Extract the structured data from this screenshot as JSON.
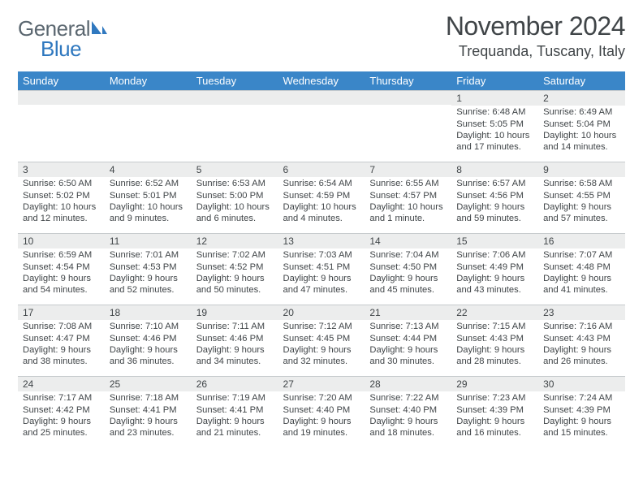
{
  "logo": {
    "general": "General",
    "blue": "Blue"
  },
  "title": "November 2024",
  "location": "Trequanda, Tuscany, Italy",
  "colors": {
    "header_bg": "#3a86c8",
    "header_fg": "#ffffff",
    "daynum_bg": "#eceded",
    "text": "#404548",
    "logo_gray": "#5b6770",
    "logo_blue": "#2f78bf"
  },
  "weekdays": [
    "Sunday",
    "Monday",
    "Tuesday",
    "Wednesday",
    "Thursday",
    "Friday",
    "Saturday"
  ],
  "weeks": [
    [
      null,
      null,
      null,
      null,
      null,
      {
        "n": "1",
        "sr": "Sunrise: 6:48 AM",
        "ss": "Sunset: 5:05 PM",
        "dl": "Daylight: 10 hours and 17 minutes."
      },
      {
        "n": "2",
        "sr": "Sunrise: 6:49 AM",
        "ss": "Sunset: 5:04 PM",
        "dl": "Daylight: 10 hours and 14 minutes."
      }
    ],
    [
      {
        "n": "3",
        "sr": "Sunrise: 6:50 AM",
        "ss": "Sunset: 5:02 PM",
        "dl": "Daylight: 10 hours and 12 minutes."
      },
      {
        "n": "4",
        "sr": "Sunrise: 6:52 AM",
        "ss": "Sunset: 5:01 PM",
        "dl": "Daylight: 10 hours and 9 minutes."
      },
      {
        "n": "5",
        "sr": "Sunrise: 6:53 AM",
        "ss": "Sunset: 5:00 PM",
        "dl": "Daylight: 10 hours and 6 minutes."
      },
      {
        "n": "6",
        "sr": "Sunrise: 6:54 AM",
        "ss": "Sunset: 4:59 PM",
        "dl": "Daylight: 10 hours and 4 minutes."
      },
      {
        "n": "7",
        "sr": "Sunrise: 6:55 AM",
        "ss": "Sunset: 4:57 PM",
        "dl": "Daylight: 10 hours and 1 minute."
      },
      {
        "n": "8",
        "sr": "Sunrise: 6:57 AM",
        "ss": "Sunset: 4:56 PM",
        "dl": "Daylight: 9 hours and 59 minutes."
      },
      {
        "n": "9",
        "sr": "Sunrise: 6:58 AM",
        "ss": "Sunset: 4:55 PM",
        "dl": "Daylight: 9 hours and 57 minutes."
      }
    ],
    [
      {
        "n": "10",
        "sr": "Sunrise: 6:59 AM",
        "ss": "Sunset: 4:54 PM",
        "dl": "Daylight: 9 hours and 54 minutes."
      },
      {
        "n": "11",
        "sr": "Sunrise: 7:01 AM",
        "ss": "Sunset: 4:53 PM",
        "dl": "Daylight: 9 hours and 52 minutes."
      },
      {
        "n": "12",
        "sr": "Sunrise: 7:02 AM",
        "ss": "Sunset: 4:52 PM",
        "dl": "Daylight: 9 hours and 50 minutes."
      },
      {
        "n": "13",
        "sr": "Sunrise: 7:03 AM",
        "ss": "Sunset: 4:51 PM",
        "dl": "Daylight: 9 hours and 47 minutes."
      },
      {
        "n": "14",
        "sr": "Sunrise: 7:04 AM",
        "ss": "Sunset: 4:50 PM",
        "dl": "Daylight: 9 hours and 45 minutes."
      },
      {
        "n": "15",
        "sr": "Sunrise: 7:06 AM",
        "ss": "Sunset: 4:49 PM",
        "dl": "Daylight: 9 hours and 43 minutes."
      },
      {
        "n": "16",
        "sr": "Sunrise: 7:07 AM",
        "ss": "Sunset: 4:48 PM",
        "dl": "Daylight: 9 hours and 41 minutes."
      }
    ],
    [
      {
        "n": "17",
        "sr": "Sunrise: 7:08 AM",
        "ss": "Sunset: 4:47 PM",
        "dl": "Daylight: 9 hours and 38 minutes."
      },
      {
        "n": "18",
        "sr": "Sunrise: 7:10 AM",
        "ss": "Sunset: 4:46 PM",
        "dl": "Daylight: 9 hours and 36 minutes."
      },
      {
        "n": "19",
        "sr": "Sunrise: 7:11 AM",
        "ss": "Sunset: 4:46 PM",
        "dl": "Daylight: 9 hours and 34 minutes."
      },
      {
        "n": "20",
        "sr": "Sunrise: 7:12 AM",
        "ss": "Sunset: 4:45 PM",
        "dl": "Daylight: 9 hours and 32 minutes."
      },
      {
        "n": "21",
        "sr": "Sunrise: 7:13 AM",
        "ss": "Sunset: 4:44 PM",
        "dl": "Daylight: 9 hours and 30 minutes."
      },
      {
        "n": "22",
        "sr": "Sunrise: 7:15 AM",
        "ss": "Sunset: 4:43 PM",
        "dl": "Daylight: 9 hours and 28 minutes."
      },
      {
        "n": "23",
        "sr": "Sunrise: 7:16 AM",
        "ss": "Sunset: 4:43 PM",
        "dl": "Daylight: 9 hours and 26 minutes."
      }
    ],
    [
      {
        "n": "24",
        "sr": "Sunrise: 7:17 AM",
        "ss": "Sunset: 4:42 PM",
        "dl": "Daylight: 9 hours and 25 minutes."
      },
      {
        "n": "25",
        "sr": "Sunrise: 7:18 AM",
        "ss": "Sunset: 4:41 PM",
        "dl": "Daylight: 9 hours and 23 minutes."
      },
      {
        "n": "26",
        "sr": "Sunrise: 7:19 AM",
        "ss": "Sunset: 4:41 PM",
        "dl": "Daylight: 9 hours and 21 minutes."
      },
      {
        "n": "27",
        "sr": "Sunrise: 7:20 AM",
        "ss": "Sunset: 4:40 PM",
        "dl": "Daylight: 9 hours and 19 minutes."
      },
      {
        "n": "28",
        "sr": "Sunrise: 7:22 AM",
        "ss": "Sunset: 4:40 PM",
        "dl": "Daylight: 9 hours and 18 minutes."
      },
      {
        "n": "29",
        "sr": "Sunrise: 7:23 AM",
        "ss": "Sunset: 4:39 PM",
        "dl": "Daylight: 9 hours and 16 minutes."
      },
      {
        "n": "30",
        "sr": "Sunrise: 7:24 AM",
        "ss": "Sunset: 4:39 PM",
        "dl": "Daylight: 9 hours and 15 minutes."
      }
    ]
  ]
}
